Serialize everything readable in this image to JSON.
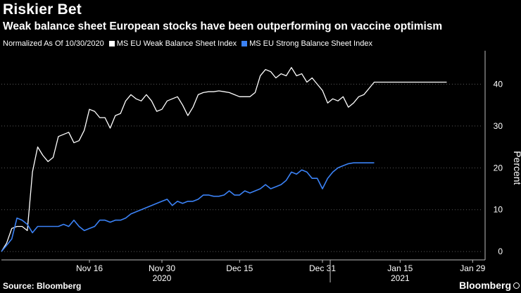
{
  "header": {
    "title": "Riskier Bet",
    "subtitle": "Weak balance sheet European stocks have been outperforming on vaccine optimism"
  },
  "legend": {
    "note": "Normalized As Of 10/30/2020",
    "items": [
      {
        "label": "MS EU Weak Balance Sheet Index",
        "color": "#ffffff"
      },
      {
        "label": "MS EU Strong Balance Sheet Index",
        "color": "#3b82f6"
      }
    ]
  },
  "footer": {
    "source": "Source: Bloomberg",
    "brand": "Bloomberg"
  },
  "chart_data": {
    "type": "line",
    "title": "Riskier Bet",
    "ylabel": "Percent",
    "xlabel": "",
    "ylim": [
      -2,
      48
    ],
    "y_ticks": [
      0,
      10,
      20,
      30,
      40
    ],
    "x_range_days": [
      0,
      86
    ],
    "x_ticks": [
      {
        "day": 17,
        "label": "Nov 16"
      },
      {
        "day": 31,
        "label": "Nov 30"
      },
      {
        "day": 46,
        "label": "Dec 15"
      },
      {
        "day": 62,
        "label": "Dec 31"
      },
      {
        "day": 77,
        "label": "Jan 15"
      },
      {
        "day": 91,
        "label": "Jan 29"
      }
    ],
    "x_year_labels": [
      {
        "day": 31,
        "label": "2020"
      },
      {
        "day": 77,
        "label": "2021"
      }
    ],
    "x_year_divider_day": 63.5,
    "series": [
      {
        "name": "MS EU Weak Balance Sheet Index",
        "color": "#ffffff",
        "x": [
          0,
          1,
          2,
          3,
          4,
          5,
          6,
          7,
          8,
          9,
          10,
          11,
          12,
          13,
          14,
          15,
          16,
          17,
          18,
          19,
          20,
          21,
          22,
          23,
          24,
          25,
          26,
          27,
          28,
          29,
          30,
          31,
          32,
          33,
          34,
          35,
          36,
          37,
          38,
          39,
          40,
          41,
          42,
          43,
          44,
          45,
          46,
          47,
          48,
          49,
          50,
          51,
          52,
          53,
          54,
          55,
          56,
          57,
          58,
          59,
          60,
          61,
          62,
          63,
          64,
          65,
          66,
          67,
          68,
          69,
          70,
          71,
          72,
          73,
          74,
          75,
          76,
          77,
          78,
          79,
          80,
          81,
          82,
          83,
          84,
          85,
          86
        ],
        "values": [
          0,
          2,
          5.5,
          6,
          6,
          5,
          19,
          25,
          23,
          21.5,
          22.5,
          27.5,
          28,
          28.5,
          26,
          26.5,
          29,
          34,
          33.5,
          32,
          32,
          29.5,
          32.5,
          33,
          36,
          37.5,
          36.5,
          36,
          37.5,
          36,
          33.5,
          34,
          36,
          36.5,
          37,
          35,
          32.5,
          34.5,
          37.5,
          38,
          38.2,
          38.2,
          38.4,
          38.2,
          38,
          37.5,
          37,
          37,
          37,
          38,
          42,
          43.5,
          43,
          41.5,
          42.5,
          42,
          44,
          42,
          42.5,
          40.5,
          41.5,
          40,
          38.5,
          35.5,
          36.5,
          36,
          37,
          34.5,
          35.5,
          37,
          37.5,
          39,
          40.5,
          40.5,
          40.5,
          40.5,
          40.5,
          40.5,
          40.5,
          40.5,
          40.5,
          40.5,
          40.5,
          40.5,
          40.5,
          40.5,
          40.5
        ]
      },
      {
        "name": "MS EU Strong Balance Sheet Index",
        "color": "#3b82f6",
        "x": [
          0,
          1,
          2,
          3,
          4,
          5,
          6,
          7,
          8,
          9,
          10,
          11,
          12,
          13,
          14,
          15,
          16,
          17,
          18,
          19,
          20,
          21,
          22,
          23,
          24,
          25,
          26,
          27,
          28,
          29,
          30,
          31,
          32,
          33,
          34,
          35,
          36,
          37,
          38,
          39,
          40,
          41,
          42,
          43,
          44,
          45,
          46,
          47,
          48,
          49,
          50,
          51,
          52,
          53,
          54,
          55,
          56,
          57,
          58,
          59,
          60,
          61,
          62,
          63,
          64,
          65,
          66,
          67,
          68,
          69,
          70,
          71,
          72
        ],
        "values": [
          0,
          1.5,
          3,
          8,
          7.5,
          6.5,
          4.5,
          6,
          6,
          6,
          6,
          6,
          6.5,
          6,
          7.5,
          6,
          5,
          5.5,
          6,
          7.5,
          7.5,
          7,
          7.5,
          7.5,
          8,
          9,
          9.5,
          10,
          10.5,
          11,
          11.5,
          12,
          12.5,
          11,
          12,
          11.5,
          12,
          12,
          12.5,
          13.5,
          13.5,
          13.2,
          13.2,
          13.5,
          14.5,
          13.5,
          13.5,
          14.5,
          14,
          14.5,
          15,
          16,
          15,
          15.5,
          16,
          17,
          19,
          18.5,
          19.5,
          19,
          17.5,
          17.5,
          15,
          17.5,
          19,
          20,
          20.5,
          21,
          21.2,
          21.2,
          21.2,
          21.2,
          21.2
        ]
      }
    ]
  }
}
